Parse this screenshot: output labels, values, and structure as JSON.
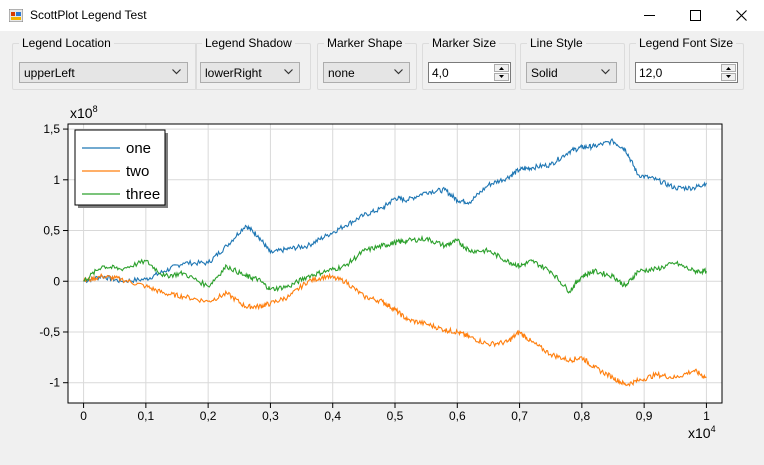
{
  "window": {
    "title": "ScottPlot Legend Test"
  },
  "controls": {
    "legend_location": {
      "label": "Legend Location",
      "value": "upperLeft"
    },
    "legend_shadow": {
      "label": "Legend Shadow",
      "value": "lowerRight"
    },
    "marker_shape": {
      "label": "Marker Shape",
      "value": "none"
    },
    "marker_size": {
      "label": "Marker Size",
      "value": "4,0"
    },
    "line_style": {
      "label": "Line Style",
      "value": "Solid"
    },
    "legend_font_size": {
      "label": "Legend Font Size",
      "value": "12,0"
    }
  },
  "chart_data": {
    "type": "line",
    "x_multiplier": "x10",
    "x_exponent": "4",
    "y_multiplier": "x10",
    "y_exponent": "8",
    "xlim": [
      -0.025,
      1.025
    ],
    "ylim": [
      -1.2,
      1.55
    ],
    "x_ticks": [
      0,
      0.1,
      0.2,
      0.3,
      0.4,
      0.5,
      0.6,
      0.7,
      0.8,
      0.9,
      1
    ],
    "x_tick_labels": [
      "0",
      "0,1",
      "0,2",
      "0,3",
      "0,4",
      "0,5",
      "0,6",
      "0,7",
      "0,8",
      "0,9",
      "1"
    ],
    "y_ticks": [
      -1,
      -0.5,
      0,
      0.5,
      1,
      1.5
    ],
    "y_tick_labels": [
      "-1",
      "-0,5",
      "0",
      "0,5",
      "1",
      "1,5"
    ],
    "grid": true,
    "legend_position": "upper-left",
    "series": [
      {
        "name": "one",
        "color": "#1f77b4",
        "x": [
          0,
          0.03,
          0.06,
          0.1,
          0.13,
          0.16,
          0.2,
          0.23,
          0.26,
          0.28,
          0.3,
          0.33,
          0.36,
          0.39,
          0.42,
          0.45,
          0.48,
          0.5,
          0.52,
          0.55,
          0.58,
          0.6,
          0.62,
          0.65,
          0.68,
          0.7,
          0.72,
          0.75,
          0.78,
          0.8,
          0.82,
          0.85,
          0.87,
          0.89,
          0.92,
          0.95,
          0.98,
          1
        ],
        "y": [
          0,
          0.05,
          0,
          0.02,
          0.1,
          0.18,
          0.18,
          0.35,
          0.55,
          0.45,
          0.28,
          0.32,
          0.35,
          0.45,
          0.55,
          0.65,
          0.72,
          0.82,
          0.8,
          0.88,
          0.9,
          0.8,
          0.78,
          0.95,
          1.02,
          1.1,
          1.12,
          1.15,
          1.28,
          1.32,
          1.33,
          1.38,
          1.3,
          1.05,
          1.0,
          0.92,
          0.92,
          0.97
        ]
      },
      {
        "name": "two",
        "color": "#ff7f0e",
        "x": [
          0,
          0.03,
          0.06,
          0.1,
          0.13,
          0.16,
          0.2,
          0.23,
          0.26,
          0.28,
          0.3,
          0.33,
          0.36,
          0.39,
          0.42,
          0.45,
          0.48,
          0.5,
          0.52,
          0.55,
          0.58,
          0.6,
          0.62,
          0.65,
          0.68,
          0.7,
          0.72,
          0.75,
          0.78,
          0.8,
          0.82,
          0.85,
          0.87,
          0.89,
          0.92,
          0.95,
          0.98,
          1
        ],
        "y": [
          0,
          0.05,
          0.02,
          -0.05,
          -0.12,
          -0.15,
          -0.2,
          -0.12,
          -0.25,
          -0.25,
          -0.22,
          -0.15,
          0,
          0.05,
          0,
          -0.15,
          -0.2,
          -0.28,
          -0.38,
          -0.42,
          -0.48,
          -0.5,
          -0.55,
          -0.62,
          -0.6,
          -0.5,
          -0.6,
          -0.72,
          -0.78,
          -0.75,
          -0.85,
          -0.95,
          -1.02,
          -0.98,
          -0.92,
          -0.95,
          -0.88,
          -0.95
        ]
      },
      {
        "name": "three",
        "color": "#2ca02c",
        "x": [
          0,
          0.03,
          0.06,
          0.1,
          0.13,
          0.16,
          0.2,
          0.23,
          0.26,
          0.28,
          0.3,
          0.33,
          0.36,
          0.39,
          0.42,
          0.45,
          0.48,
          0.5,
          0.52,
          0.55,
          0.58,
          0.6,
          0.62,
          0.65,
          0.68,
          0.7,
          0.72,
          0.75,
          0.78,
          0.8,
          0.82,
          0.85,
          0.87,
          0.89,
          0.92,
          0.95,
          0.98,
          1
        ],
        "y": [
          0,
          0.15,
          0.12,
          0.2,
          0.05,
          0.08,
          -0.05,
          0.15,
          0.05,
          0.02,
          -0.08,
          -0.05,
          0.05,
          0.1,
          0.15,
          0.3,
          0.35,
          0.38,
          0.4,
          0.42,
          0.35,
          0.4,
          0.3,
          0.3,
          0.2,
          0.15,
          0.2,
          0.1,
          -0.1,
          0.05,
          0.1,
          0.05,
          -0.05,
          0.1,
          0.12,
          0.18,
          0.1,
          0.1
        ]
      }
    ]
  }
}
